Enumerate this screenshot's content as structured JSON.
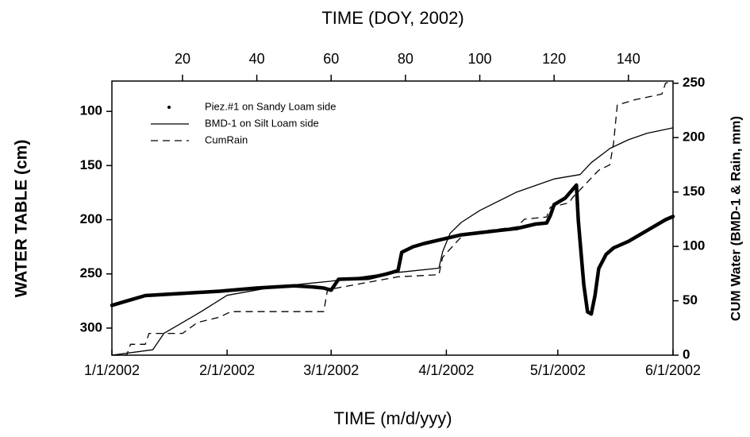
{
  "chart_data": {
    "type": "line",
    "x_label": "TIME (m/d/yyy)",
    "x2_label": "TIME (DOY, 2002)",
    "y_label": "WATER TABLE (cm)",
    "y2_label": "CUM Water (BMD-1 & Rain, mm)",
    "xlim": [
      1,
      152
    ],
    "xticks": [
      {
        "value": 1,
        "label": "1/1/2002"
      },
      {
        "value": 32,
        "label": "2/1/2002"
      },
      {
        "value": 60,
        "label": "3/1/2002"
      },
      {
        "value": 91,
        "label": "4/1/2002"
      },
      {
        "value": 121,
        "label": "5/1/2002"
      },
      {
        "value": 152,
        "label": "6/1/2002"
      }
    ],
    "x2ticks": [
      20,
      40,
      60,
      80,
      100,
      120,
      140
    ],
    "ylim": [
      325,
      72
    ],
    "yticks": [
      100,
      150,
      200,
      250,
      300
    ],
    "y2lim": [
      0,
      252
    ],
    "y2ticks": [
      0,
      50,
      100,
      150,
      200,
      250
    ],
    "legend": "top-left",
    "series": [
      {
        "name": "Piez.#1 on Sandy Loam side",
        "color": "#000000",
        "style": "dotted",
        "axis": "y",
        "x": [
          1,
          5,
          10,
          20,
          30,
          40,
          50,
          55,
          58,
          60,
          62,
          70,
          75,
          78,
          79,
          82,
          85,
          90,
          95,
          100,
          105,
          110,
          115,
          118,
          119,
          120,
          123,
          125,
          126,
          126.5,
          127,
          128,
          129,
          130,
          131,
          132,
          134,
          136,
          140,
          145,
          150,
          152
        ],
        "values": [
          279,
          275,
          270,
          268,
          266,
          263,
          261,
          262,
          263,
          265,
          255,
          254,
          250,
          247,
          230,
          225,
          222,
          218,
          214,
          212,
          210,
          208,
          204,
          203,
          196,
          186,
          180,
          172,
          168,
          200,
          220,
          260,
          285,
          287,
          270,
          245,
          232,
          226,
          220,
          210,
          200,
          197
        ]
      },
      {
        "name": "BMD-1 on Silt Loam side",
        "color": "#000000",
        "style": "solid",
        "axis": "y2",
        "x": [
          1,
          12,
          15,
          20,
          25,
          32,
          45,
          60,
          75,
          89,
          90,
          92,
          95,
          100,
          110,
          120,
          127,
          130,
          135,
          140,
          145,
          152
        ],
        "values": [
          0,
          5,
          20,
          30,
          40,
          55,
          63,
          68,
          75,
          80,
          95,
          112,
          122,
          133,
          150,
          162,
          166,
          177,
          190,
          198,
          204,
          209
        ]
      },
      {
        "name": "CumRain",
        "color": "#000000",
        "style": "dashed",
        "axis": "y2",
        "x": [
          1,
          5,
          6,
          10,
          11,
          20,
          24,
          30,
          33,
          58,
          59,
          62,
          78,
          89,
          90,
          94,
          96,
          110,
          112,
          118,
          119,
          124,
          125,
          132,
          135,
          136,
          137,
          142,
          149,
          150,
          152
        ],
        "values": [
          0,
          0,
          10,
          10,
          20,
          20,
          30,
          35,
          40,
          40,
          60,
          62,
          72,
          74,
          90,
          105,
          112,
          118,
          125,
          127,
          136,
          140,
          145,
          170,
          175,
          195,
          230,
          235,
          240,
          250,
          252
        ]
      }
    ]
  }
}
